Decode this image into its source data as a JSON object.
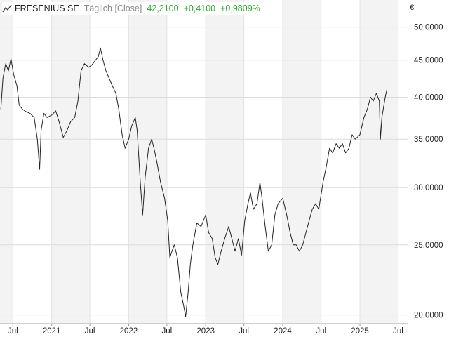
{
  "header": {
    "name": "FRESENIUS SE",
    "period": "Täglich [Close]",
    "last": "42,2100",
    "change": "+0,4100",
    "change_pct": "+0,9809%",
    "positive_color": "#2fa52f",
    "icon": "line-chart-icon"
  },
  "currency": "€",
  "chart_data": {
    "type": "line",
    "title": "FRESENIUS SE",
    "subtitle": "Täglich [Close]",
    "y_scale": "log",
    "ylim": [
      19.5,
      54.5
    ],
    "y_ticks": [
      20,
      25,
      30,
      35,
      40,
      45,
      50
    ],
    "y_tick_labels": [
      "20,0000",
      "25,0000",
      "30,0000",
      "35,0000",
      "40,0000",
      "45,0000",
      "50,0000"
    ],
    "x_range": [
      "2020-05-01",
      "2025-08-15"
    ],
    "x_ticks": [
      {
        "date": "2020-07-01",
        "label": "Jul"
      },
      {
        "date": "2021-01-01",
        "label": "2021"
      },
      {
        "date": "2021-07-01",
        "label": "Jul"
      },
      {
        "date": "2022-01-01",
        "label": "2022"
      },
      {
        "date": "2022-07-01",
        "label": "Jul"
      },
      {
        "date": "2023-01-01",
        "label": "2023"
      },
      {
        "date": "2023-07-01",
        "label": "Jul"
      },
      {
        "date": "2024-01-01",
        "label": "2024"
      },
      {
        "date": "2024-07-01",
        "label": "Jul"
      },
      {
        "date": "2025-01-01",
        "label": "2025"
      },
      {
        "date": "2025-07-01",
        "label": "Jul"
      }
    ],
    "grid": true,
    "line_color": "#222222",
    "series": [
      {
        "name": "FRESENIUS SE",
        "points": [
          [
            "2020-05-05",
            38.5
          ],
          [
            "2020-05-15",
            42.5
          ],
          [
            "2020-05-28",
            44.5
          ],
          [
            "2020-06-10",
            43.5
          ],
          [
            "2020-06-22",
            45.2
          ],
          [
            "2020-07-05",
            43.0
          ],
          [
            "2020-07-20",
            41.5
          ],
          [
            "2020-07-31",
            39.0
          ],
          [
            "2020-08-15",
            38.5
          ],
          [
            "2020-09-01",
            38.2
          ],
          [
            "2020-09-20",
            38.0
          ],
          [
            "2020-10-10",
            37.5
          ],
          [
            "2020-10-25",
            35.0
          ],
          [
            "2020-11-05",
            31.8
          ],
          [
            "2020-11-12",
            36.0
          ],
          [
            "2020-11-25",
            38.0
          ],
          [
            "2020-12-10",
            37.5
          ],
          [
            "2021-01-01",
            37.8
          ],
          [
            "2021-01-20",
            38.3
          ],
          [
            "2021-02-05",
            37.0
          ],
          [
            "2021-02-25",
            35.2
          ],
          [
            "2021-03-15",
            36.0
          ],
          [
            "2021-04-01",
            37.0
          ],
          [
            "2021-04-20",
            37.5
          ],
          [
            "2021-05-05",
            39.5
          ],
          [
            "2021-05-20",
            43.5
          ],
          [
            "2021-06-05",
            44.5
          ],
          [
            "2021-06-25",
            44.0
          ],
          [
            "2021-07-10",
            44.3
          ],
          [
            "2021-07-28",
            45.0
          ],
          [
            "2021-08-10",
            45.5
          ],
          [
            "2021-08-20",
            46.8
          ],
          [
            "2021-09-01",
            45.0
          ],
          [
            "2021-09-15",
            43.5
          ],
          [
            "2021-09-30",
            42.5
          ],
          [
            "2021-10-15",
            41.5
          ],
          [
            "2021-11-01",
            40.5
          ],
          [
            "2021-11-15",
            38.5
          ],
          [
            "2021-12-01",
            35.5
          ],
          [
            "2021-12-15",
            34.0
          ],
          [
            "2022-01-01",
            35.0
          ],
          [
            "2022-01-15",
            36.5
          ],
          [
            "2022-02-01",
            37.5
          ],
          [
            "2022-02-10",
            36.0
          ],
          [
            "2022-02-25",
            30.5
          ],
          [
            "2022-03-08",
            27.5
          ],
          [
            "2022-03-20",
            31.0
          ],
          [
            "2022-04-05",
            34.0
          ],
          [
            "2022-04-20",
            35.0
          ],
          [
            "2022-05-01",
            34.0
          ],
          [
            "2022-05-15",
            32.5
          ],
          [
            "2022-06-01",
            30.5
          ],
          [
            "2022-06-20",
            29.0
          ],
          [
            "2022-07-05",
            27.0
          ],
          [
            "2022-07-15",
            24.0
          ],
          [
            "2022-07-25",
            24.5
          ],
          [
            "2022-08-05",
            25.0
          ],
          [
            "2022-08-20",
            24.0
          ],
          [
            "2022-09-05",
            21.5
          ],
          [
            "2022-09-20",
            20.5
          ],
          [
            "2022-09-28",
            19.9
          ],
          [
            "2022-10-10",
            21.5
          ],
          [
            "2022-10-20",
            23.5
          ],
          [
            "2022-11-01",
            25.0
          ],
          [
            "2022-11-20",
            26.8
          ],
          [
            "2022-12-10",
            26.5
          ],
          [
            "2023-01-01",
            27.5
          ],
          [
            "2023-01-15",
            26.0
          ],
          [
            "2023-02-01",
            25.5
          ],
          [
            "2023-02-15",
            24.0
          ],
          [
            "2023-02-28",
            23.5
          ],
          [
            "2023-03-15",
            24.5
          ],
          [
            "2023-04-01",
            25.5
          ],
          [
            "2023-04-20",
            26.5
          ],
          [
            "2023-05-05",
            25.5
          ],
          [
            "2023-05-20",
            24.5
          ],
          [
            "2023-06-05",
            25.5
          ],
          [
            "2023-06-20",
            24.2
          ],
          [
            "2023-07-05",
            27.0
          ],
          [
            "2023-07-20",
            28.5
          ],
          [
            "2023-08-01",
            29.5
          ],
          [
            "2023-08-15",
            28.0
          ],
          [
            "2023-09-01",
            28.5
          ],
          [
            "2023-09-15",
            30.5
          ],
          [
            "2023-09-25",
            29.0
          ],
          [
            "2023-10-10",
            26.5
          ],
          [
            "2023-10-25",
            24.5
          ],
          [
            "2023-11-10",
            25.0
          ],
          [
            "2023-11-25",
            27.5
          ],
          [
            "2023-12-10",
            28.5
          ],
          [
            "2024-01-01",
            29.0
          ],
          [
            "2024-01-20",
            27.5
          ],
          [
            "2024-02-05",
            26.0
          ],
          [
            "2024-02-20",
            25.0
          ],
          [
            "2024-03-05",
            25.0
          ],
          [
            "2024-03-20",
            24.5
          ],
          [
            "2024-04-05",
            25.0
          ],
          [
            "2024-04-20",
            26.0
          ],
          [
            "2024-05-05",
            27.0
          ],
          [
            "2024-05-20",
            28.0
          ],
          [
            "2024-06-05",
            28.5
          ],
          [
            "2024-06-20",
            28.0
          ],
          [
            "2024-07-10",
            30.5
          ],
          [
            "2024-07-25",
            32.0
          ],
          [
            "2024-08-10",
            34.0
          ],
          [
            "2024-08-25",
            33.5
          ],
          [
            "2024-09-10",
            34.5
          ],
          [
            "2024-09-25",
            34.0
          ],
          [
            "2024-10-10",
            34.5
          ],
          [
            "2024-10-25",
            33.5
          ],
          [
            "2024-11-10",
            34.0
          ],
          [
            "2024-11-25",
            35.5
          ],
          [
            "2024-12-10",
            35.0
          ],
          [
            "2025-01-01",
            35.5
          ],
          [
            "2025-01-20",
            37.5
          ],
          [
            "2025-02-05",
            38.5
          ],
          [
            "2025-02-20",
            40.0
          ],
          [
            "2025-03-05",
            39.5
          ],
          [
            "2025-03-20",
            40.5
          ],
          [
            "2025-04-03",
            39.5
          ],
          [
            "2025-04-08",
            35.0
          ],
          [
            "2025-04-15",
            37.5
          ],
          [
            "2025-05-01",
            40.0
          ],
          [
            "2025-05-09",
            41.0
          ]
        ]
      }
    ]
  }
}
